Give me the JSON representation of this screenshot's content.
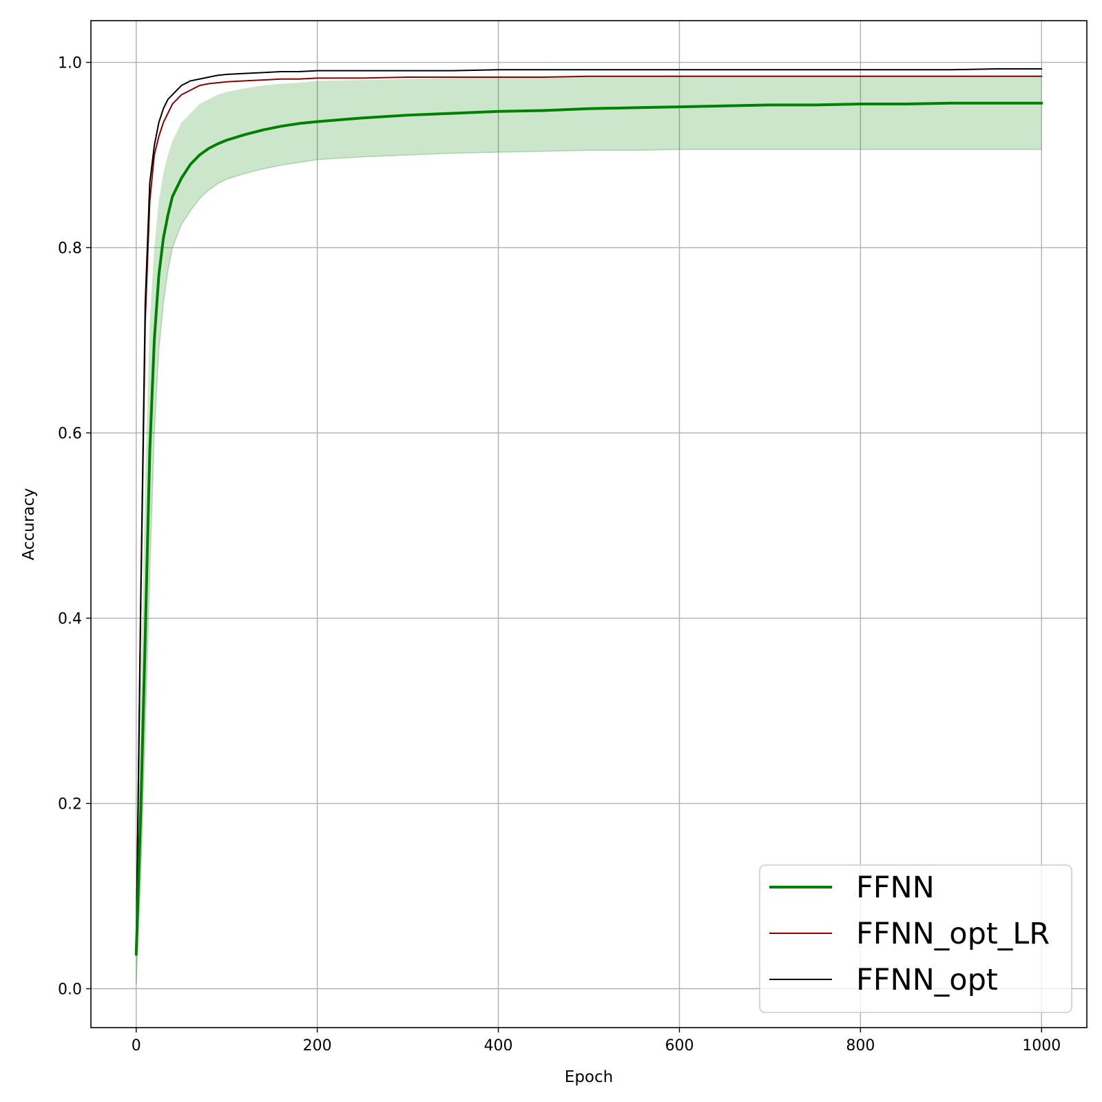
{
  "chart_data": {
    "type": "line",
    "title": "",
    "xlabel": "Epoch",
    "ylabel": "Accuracy",
    "xlim": [
      -50,
      1050
    ],
    "ylim": [
      -0.042,
      1.045
    ],
    "xticks": [
      0,
      200,
      400,
      600,
      800,
      1000
    ],
    "yticks": [
      0.0,
      0.2,
      0.4,
      0.6,
      0.8,
      1.0
    ],
    "xtick_labels": [
      "0",
      "200",
      "400",
      "600",
      "800",
      "1000"
    ],
    "ytick_labels": [
      "0.0",
      "0.2",
      "0.4",
      "0.6",
      "0.8",
      "1.0"
    ],
    "grid": true,
    "legend_position": "lower-right",
    "colors": {
      "FFNN": "#008000",
      "FFNN_band": "#008000",
      "FFNN_opt_LR": "#8b0000",
      "FFNN_opt": "#000000",
      "grid": "#b0b0b0"
    },
    "x": [
      0,
      5,
      10,
      15,
      20,
      25,
      30,
      35,
      40,
      50,
      60,
      70,
      80,
      90,
      100,
      120,
      140,
      160,
      180,
      200,
      250,
      300,
      350,
      400,
      450,
      500,
      550,
      600,
      650,
      700,
      750,
      800,
      850,
      900,
      950,
      1000
    ],
    "series": [
      {
        "name": "FFNN",
        "values": [
          0.037,
          0.19,
          0.38,
          0.58,
          0.7,
          0.77,
          0.81,
          0.835,
          0.855,
          0.875,
          0.89,
          0.9,
          0.907,
          0.912,
          0.916,
          0.922,
          0.927,
          0.931,
          0.934,
          0.936,
          0.94,
          0.943,
          0.945,
          0.947,
          0.948,
          0.95,
          0.951,
          0.952,
          0.953,
          0.954,
          0.954,
          0.955,
          0.955,
          0.956,
          0.956,
          0.956
        ]
      },
      {
        "name": "FFNN_opt_LR",
        "values": [
          0.04,
          0.41,
          0.72,
          0.85,
          0.9,
          0.92,
          0.935,
          0.945,
          0.955,
          0.965,
          0.97,
          0.975,
          0.977,
          0.978,
          0.979,
          0.98,
          0.981,
          0.982,
          0.982,
          0.983,
          0.983,
          0.984,
          0.984,
          0.984,
          0.984,
          0.985,
          0.985,
          0.985,
          0.985,
          0.985,
          0.985,
          0.985,
          0.985,
          0.985,
          0.985,
          0.985
        ]
      },
      {
        "name": "FFNN_opt",
        "values": [
          0.04,
          0.42,
          0.74,
          0.87,
          0.91,
          0.935,
          0.95,
          0.96,
          0.965,
          0.975,
          0.98,
          0.982,
          0.984,
          0.986,
          0.987,
          0.988,
          0.989,
          0.99,
          0.99,
          0.991,
          0.991,
          0.991,
          0.991,
          0.992,
          0.992,
          0.992,
          0.992,
          0.992,
          0.992,
          0.992,
          0.992,
          0.992,
          0.992,
          0.992,
          0.993,
          0.993
        ]
      }
    ],
    "band": {
      "of": "FFNN",
      "lower": [
        0.005,
        0.12,
        0.28,
        0.45,
        0.6,
        0.69,
        0.74,
        0.775,
        0.8,
        0.825,
        0.84,
        0.853,
        0.862,
        0.869,
        0.874,
        0.88,
        0.885,
        0.889,
        0.892,
        0.895,
        0.898,
        0.9,
        0.902,
        0.903,
        0.904,
        0.905,
        0.905,
        0.906,
        0.906,
        0.906,
        0.906,
        0.906,
        0.906,
        0.906,
        0.906,
        0.906
      ],
      "upper": [
        0.07,
        0.32,
        0.55,
        0.72,
        0.8,
        0.85,
        0.88,
        0.9,
        0.915,
        0.935,
        0.945,
        0.955,
        0.96,
        0.965,
        0.968,
        0.972,
        0.975,
        0.977,
        0.978,
        0.98,
        0.981,
        0.982,
        0.983,
        0.984,
        0.984,
        0.985,
        0.985,
        0.986,
        0.986,
        0.986,
        0.986,
        0.986,
        0.986,
        0.986,
        0.986,
        0.986
      ]
    }
  }
}
